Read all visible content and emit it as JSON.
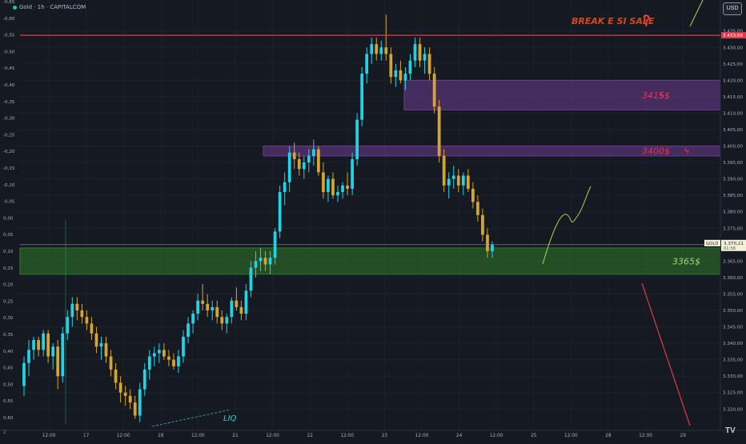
{
  "header": {
    "symbol_line": "Gold · 1h · CAPITALCOM"
  },
  "currency_button": "USD",
  "logo_text": "TV",
  "z_button": "Z",
  "chart_data": {
    "type": "candlestick",
    "title": "Gold · 1h · CAPITALCOM",
    "right_axis": {
      "ylim": [
        3313.5,
        3441.5
      ],
      "ticks": [
        "3.320,00",
        "3.325,00",
        "3.330,00",
        "3.335,00",
        "3.340,00",
        "3.345,00",
        "3.350,00",
        "3.355,00",
        "3.360,00",
        "3.365,00",
        "3.370,00",
        "3.375,00",
        "3.380,00",
        "3.385,00",
        "3.390,00",
        "3.395,00",
        "3.400,00",
        "3.405,00",
        "3.410,00",
        "3.415,00",
        "3.420,00",
        "3.425,00",
        "3.430,00",
        "3.435,00"
      ]
    },
    "left_axis": {
      "ticks": [
        "-0,65",
        "-0,60",
        "-0,55",
        "-0,50",
        "-0,45",
        "-0,40",
        "-0,35",
        "-0,30",
        "-0,25",
        "-0,20",
        "-0,15",
        "-0,10",
        "-0,05",
        "0,00",
        "0,05",
        "0,10",
        "0,15",
        "0,20",
        "0,25",
        "0,30",
        "0,35",
        "0,40",
        "0,45",
        "0,50",
        "0,55",
        "0,60"
      ]
    },
    "x_axis": {
      "ticks": [
        "12:00",
        "17",
        "12:00",
        "18",
        "12:00",
        "21",
        "12:00",
        "22",
        "12:00",
        "23",
        "12:00",
        "24",
        "12:00",
        "25",
        "12:00",
        "28",
        "12:00",
        "29"
      ]
    },
    "candles_ohlc": [
      [
        3327,
        3336,
        3324,
        3334
      ],
      [
        3334,
        3341,
        3330,
        3338
      ],
      [
        3338,
        3342,
        3335,
        3341
      ],
      [
        3341,
        3342,
        3336,
        3338
      ],
      [
        3338,
        3344,
        3336,
        3343
      ],
      [
        3343,
        3344,
        3334,
        3336
      ],
      [
        3336,
        3340,
        3332,
        3339
      ],
      [
        3339,
        3341,
        3326,
        3330
      ],
      [
        3330,
        3345,
        3328,
        3343
      ],
      [
        3343,
        3350,
        3341,
        3348
      ],
      [
        3348,
        3354,
        3345,
        3352
      ],
      [
        3352,
        3354,
        3347,
        3350
      ],
      [
        3350,
        3352,
        3346,
        3348
      ],
      [
        3348,
        3350,
        3344,
        3346
      ],
      [
        3346,
        3348,
        3341,
        3343
      ],
      [
        3343,
        3345,
        3337,
        3339
      ],
      [
        3339,
        3342,
        3335,
        3340
      ],
      [
        3340,
        3342,
        3334,
        3336
      ],
      [
        3336,
        3338,
        3330,
        3332
      ],
      [
        3332,
        3334,
        3326,
        3328
      ],
      [
        3328,
        3330,
        3322,
        3325
      ],
      [
        3325,
        3327,
        3321,
        3324
      ],
      [
        3324,
        3326,
        3320,
        3322
      ],
      [
        3322,
        3324,
        3317,
        3318
      ],
      [
        3318,
        3328,
        3316,
        3326
      ],
      [
        3326,
        3334,
        3324,
        3332
      ],
      [
        3332,
        3338,
        3329,
        3336
      ],
      [
        3336,
        3339,
        3333,
        3337
      ],
      [
        3337,
        3340,
        3334,
        3338
      ],
      [
        3338,
        3340,
        3335,
        3336
      ],
      [
        3336,
        3338,
        3333,
        3335
      ],
      [
        3335,
        3337,
        3332,
        3333
      ],
      [
        3333,
        3338,
        3331,
        3336
      ],
      [
        3336,
        3344,
        3334,
        3342
      ],
      [
        3342,
        3348,
        3340,
        3346
      ],
      [
        3346,
        3350,
        3343,
        3349
      ],
      [
        3349,
        3355,
        3347,
        3353
      ],
      [
        3353,
        3358,
        3350,
        3352
      ],
      [
        3352,
        3355,
        3348,
        3350
      ],
      [
        3350,
        3353,
        3347,
        3351
      ],
      [
        3351,
        3353,
        3346,
        3348
      ],
      [
        3348,
        3350,
        3344,
        3346
      ],
      [
        3346,
        3349,
        3343,
        3348
      ],
      [
        3348,
        3354,
        3346,
        3353
      ],
      [
        3353,
        3357,
        3350,
        3351
      ],
      [
        3351,
        3353,
        3347,
        3349
      ],
      [
        3349,
        3358,
        3347,
        3356
      ],
      [
        3356,
        3365,
        3354,
        3363
      ],
      [
        3363,
        3368,
        3360,
        3365
      ],
      [
        3365,
        3369,
        3362,
        3366
      ],
      [
        3366,
        3368,
        3362,
        3364
      ],
      [
        3364,
        3368,
        3361,
        3366
      ],
      [
        3366,
        3375,
        3364,
        3374
      ],
      [
        3374,
        3388,
        3372,
        3386
      ],
      [
        3386,
        3392,
        3382,
        3389
      ],
      [
        3389,
        3400,
        3386,
        3398
      ],
      [
        3398,
        3401,
        3393,
        3396
      ],
      [
        3396,
        3398,
        3391,
        3393
      ],
      [
        3393,
        3397,
        3390,
        3395
      ],
      [
        3395,
        3399,
        3392,
        3397
      ],
      [
        3397,
        3402,
        3394,
        3399
      ],
      [
        3399,
        3400,
        3391,
        3392
      ],
      [
        3392,
        3395,
        3384,
        3386
      ],
      [
        3386,
        3391,
        3383,
        3390
      ],
      [
        3390,
        3392,
        3384,
        3385
      ],
      [
        3385,
        3388,
        3383,
        3386
      ],
      [
        3386,
        3389,
        3384,
        3388
      ],
      [
        3388,
        3392,
        3385,
        3387
      ],
      [
        3387,
        3398,
        3385,
        3396
      ],
      [
        3396,
        3410,
        3394,
        3408
      ],
      [
        3408,
        3424,
        3406,
        3422
      ],
      [
        3422,
        3430,
        3419,
        3428
      ],
      [
        3428,
        3433,
        3425,
        3431
      ],
      [
        3431,
        3433,
        3426,
        3428
      ],
      [
        3428,
        3432,
        3426,
        3430
      ],
      [
        3430,
        3440,
        3426,
        3428
      ],
      [
        3428,
        3430,
        3419,
        3421
      ],
      [
        3421,
        3425,
        3418,
        3423
      ],
      [
        3423,
        3426,
        3419,
        3420
      ],
      [
        3420,
        3424,
        3417,
        3422
      ],
      [
        3422,
        3428,
        3420,
        3426
      ],
      [
        3426,
        3433,
        3424,
        3431
      ],
      [
        3431,
        3433,
        3424,
        3426
      ],
      [
        3426,
        3430,
        3422,
        3428
      ],
      [
        3428,
        3430,
        3420,
        3422
      ],
      [
        3422,
        3424,
        3410,
        3412
      ],
      [
        3412,
        3414,
        3395,
        3397
      ],
      [
        3397,
        3399,
        3386,
        3388
      ],
      [
        3388,
        3392,
        3384,
        3390
      ],
      [
        3390,
        3394,
        3387,
        3391
      ],
      [
        3391,
        3393,
        3386,
        3388
      ],
      [
        3388,
        3392,
        3385,
        3391
      ],
      [
        3391,
        3393,
        3386,
        3387
      ],
      [
        3387,
        3389,
        3381,
        3383
      ],
      [
        3383,
        3385,
        3377,
        3379
      ],
      [
        3379,
        3381,
        3371,
        3373
      ],
      [
        3373,
        3375,
        3366,
        3368
      ],
      [
        3368,
        3371,
        3366,
        3370
      ]
    ],
    "price_label": {
      "symbol": "GOLD",
      "price": "3.370,21",
      "countdown": "01:58"
    },
    "resistance_line": {
      "value": 3433.69,
      "label": "3.433,69"
    },
    "zones": [
      {
        "label": "3415$",
        "top": 3420,
        "bottom": 3411,
        "color": "#6e3c94"
      },
      {
        "label": "3400$",
        "top": 3400,
        "bottom": 3397,
        "color": "#6e3c94"
      },
      {
        "label": "3365$",
        "top": 3369,
        "bottom": 3361,
        "color": "#2f7a2a"
      }
    ],
    "annotations": [
      "BREAK E SI SALE",
      "❓",
      "LIQ"
    ],
    "colors": {
      "bull": "#22d3e6",
      "bear": "#d6a530",
      "resistance": "#e03a4a",
      "forecast_up": "#a6d64a",
      "forecast_down": "#e03a4a",
      "background": "#151921"
    }
  }
}
